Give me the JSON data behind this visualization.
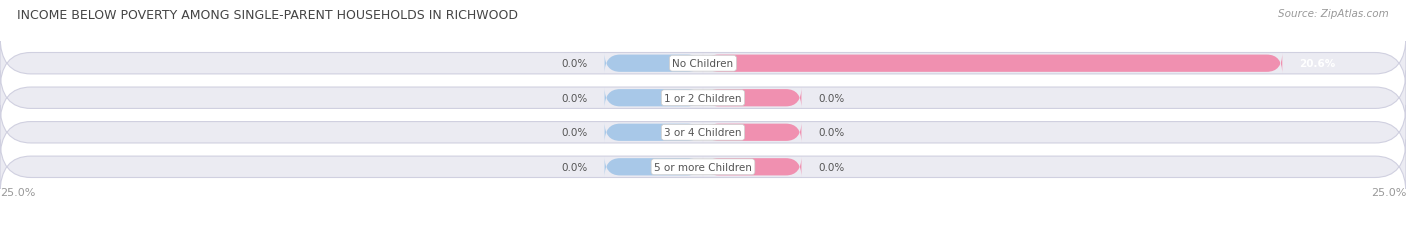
{
  "title": "INCOME BELOW POVERTY AMONG SINGLE-PARENT HOUSEHOLDS IN RICHWOOD",
  "source": "Source: ZipAtlas.com",
  "categories": [
    "No Children",
    "1 or 2 Children",
    "3 or 4 Children",
    "5 or more Children"
  ],
  "single_father": [
    0.0,
    0.0,
    0.0,
    0.0
  ],
  "single_mother": [
    20.6,
    0.0,
    0.0,
    0.0
  ],
  "x_max": 25.0,
  "x_min": -25.0,
  "father_color": "#a8c8e8",
  "mother_color": "#f090b0",
  "bar_bg_color": "#ebebf2",
  "bar_border_color": "#d0d0e0",
  "title_color": "#444444",
  "label_color": "#555555",
  "axis_label_color": "#999999",
  "bar_height": 0.62,
  "title_fontsize": 9.0,
  "source_fontsize": 7.5,
  "value_fontsize": 7.5,
  "category_fontsize": 7.5,
  "legend_fontsize": 8.0,
  "min_bar_display": 1.0,
  "zero_bar_width": 3.5
}
